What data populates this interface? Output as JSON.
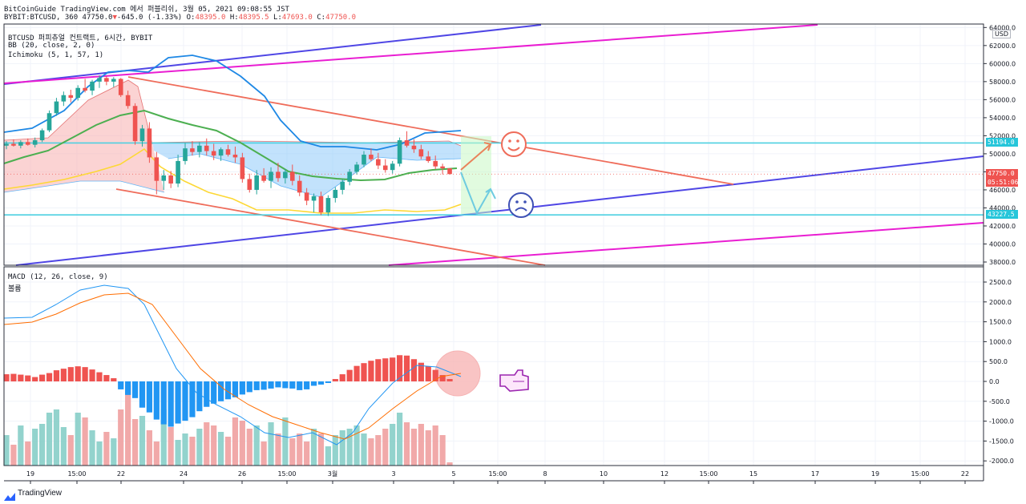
{
  "header": {
    "line1": "BitCoinGuide TradingView.com 에서 퍼블리쉬, 3월 05, 2021 09:08:55 JST",
    "symbol": "BYBIT:BTCUSD, 360",
    "price": "47750.0",
    "arrow": "▼",
    "change": "-645.0 (-1.33%)",
    "o_label": "O:",
    "o_value": "48395.0",
    "h_label": "H:",
    "h_value": "48395.5",
    "l_label": "L:",
    "l_value": "47693.0",
    "c_label": "C:",
    "c_value": "47750.0"
  },
  "main_pane": {
    "title": "BTCUSD 퍼피츄얼 컨트랙트, 6시간, BYBIT",
    "ind1": "BB (20, close, 2, 0)",
    "ind2": "Ichimoku (5, 1, 57, 1)",
    "currency": "USD",
    "price_tags": {
      "resistance": "51194.0",
      "last": "47750.0",
      "countdown": "05:51:06",
      "support": "43227.5"
    }
  },
  "macd_pane": {
    "title": "MACD (12, 26, close, 9)",
    "volume_label": "볼륨"
  },
  "colors": {
    "bull": "#ef5350",
    "bear": "#26a69a",
    "hist_pos": "#ef5350",
    "hist_neg": "#2196f3",
    "vol_bull": "#ef9a9a",
    "vol_bear": "#80cbc4",
    "bb_basis": "#4caf50",
    "bb_band": "#1e88e5",
    "ichimoku_lag": "#fdd835",
    "trend_blue": "#4f46e5",
    "trend_magenta": "#e91ed2",
    "trend_red": "#ef6c5a",
    "hline": "#4dd0e1",
    "macd_line": "#2196f3",
    "signal_line": "#ff6d00"
  },
  "icons": {
    "happy": "smiley-face-icon",
    "sad": "frowny-face-icon",
    "pointer": "pointing-hand-icon",
    "logo": "tradingview-logo-icon"
  },
  "chart_data": [
    {
      "type": "candlestick",
      "title": "BTCUSD 퍼피츄얼 컨트랙트, 6시간, BYBIT",
      "ylabel": "USD",
      "ylim": [
        37000,
        64500
      ],
      "y_ticks": [
        "38000.0",
        "40000.0",
        "42000.0",
        "44000.0",
        "46000.0",
        "48000.0",
        "50000.0",
        "52000.0",
        "54000.0",
        "56000.0",
        "58000.0",
        "60000.0",
        "62000.0",
        "64000.0"
      ],
      "x_ticks": [
        "19",
        "15:00",
        "22",
        "24",
        "26",
        "15:00",
        "3월",
        "3",
        "5",
        "15:00",
        "8",
        "10",
        "12",
        "15:00",
        "15",
        "17",
        "19",
        "15:00",
        "22"
      ],
      "candles_ohlc": [
        [
          50900,
          51400,
          50500,
          51100
        ],
        [
          51100,
          51600,
          50800,
          50900
        ],
        [
          50900,
          51500,
          50600,
          51300
        ],
        [
          51300,
          51700,
          50900,
          51000
        ],
        [
          51000,
          51800,
          50700,
          51500
        ],
        [
          51500,
          52800,
          51300,
          52600
        ],
        [
          52600,
          54800,
          52400,
          54500
        ],
        [
          54500,
          56200,
          54200,
          55800
        ],
        [
          55800,
          56900,
          55300,
          56500
        ],
        [
          56500,
          57100,
          55700,
          56200
        ],
        [
          56200,
          57600,
          55900,
          57300
        ],
        [
          57300,
          58300,
          56800,
          57000
        ],
        [
          57000,
          58200,
          56500,
          58000
        ],
        [
          58000,
          58700,
          57300,
          58400
        ],
        [
          58400,
          58600,
          57600,
          58000
        ],
        [
          58000,
          58500,
          57400,
          58300
        ],
        [
          58300,
          58400,
          56300,
          56500
        ],
        [
          56500,
          57000,
          55000,
          55300
        ],
        [
          55300,
          55600,
          51000,
          51400
        ],
        [
          51400,
          53200,
          50800,
          52800
        ],
        [
          52800,
          53500,
          49000,
          49600
        ],
        [
          49600,
          50200,
          45500,
          47000
        ],
        [
          47000,
          48200,
          46000,
          47600
        ],
        [
          47600,
          48100,
          46200,
          46700
        ],
        [
          46700,
          49900,
          46300,
          49200
        ],
        [
          49200,
          51200,
          48800,
          50600
        ],
        [
          50600,
          51400,
          49800,
          50200
        ],
        [
          50200,
          51300,
          49600,
          50900
        ],
        [
          50900,
          51700,
          49800,
          50300
        ],
        [
          50300,
          51100,
          49300,
          49800
        ],
        [
          49800,
          50700,
          49200,
          50500
        ],
        [
          50500,
          51000,
          49700,
          49900
        ],
        [
          49900,
          50800,
          49000,
          49600
        ],
        [
          49600,
          50100,
          46800,
          47200
        ],
        [
          47200,
          47800,
          45700,
          46000
        ],
        [
          46000,
          48200,
          45500,
          47600
        ],
        [
          47600,
          48400,
          46800,
          47000
        ],
        [
          47000,
          48500,
          46200,
          48000
        ],
        [
          48000,
          49000,
          46900,
          47300
        ],
        [
          47300,
          48300,
          46700,
          48000
        ],
        [
          48000,
          48800,
          46500,
          47000
        ],
        [
          47000,
          47600,
          45300,
          45700
        ],
        [
          45700,
          46200,
          44300,
          44800
        ],
        [
          44800,
          45600,
          43500,
          45300
        ],
        [
          45300,
          45800,
          43200,
          43500
        ],
        [
          43500,
          45400,
          43100,
          45100
        ],
        [
          45100,
          46300,
          44600,
          46000
        ],
        [
          46000,
          47200,
          45500,
          46900
        ],
        [
          46900,
          48300,
          46500,
          48000
        ],
        [
          48000,
          49100,
          47700,
          48800
        ],
        [
          48800,
          50300,
          48500,
          49900
        ],
        [
          49900,
          50600,
          49200,
          49400
        ],
        [
          49400,
          50100,
          48300,
          48700
        ],
        [
          48700,
          49400,
          47900,
          48200
        ],
        [
          48200,
          49200,
          47800,
          48900
        ],
        [
          48900,
          51800,
          48600,
          51500
        ],
        [
          51500,
          52500,
          50700,
          50900
        ],
        [
          50900,
          51600,
          50100,
          50500
        ],
        [
          50500,
          51000,
          49400,
          49700
        ],
        [
          49700,
          50300,
          49000,
          49200
        ],
        [
          49200,
          49800,
          48300,
          48600
        ],
        [
          48600,
          48900,
          47700,
          48395
        ],
        [
          48395,
          48395.5,
          47693,
          47750
        ]
      ],
      "horizontal_lines": [
        51194.0,
        43227.5
      ],
      "last_price": 47750.0
    },
    {
      "type": "bar",
      "title": "MACD (12, 26, close, 9)",
      "ylim": [
        -2150,
        2700
      ],
      "y_ticks": [
        "2500.0",
        "2000.0",
        "1500.0",
        "1000.0",
        "500.0",
        "0.0",
        "-500.0",
        "-1000.0",
        "-1500.0",
        "-2000.0"
      ],
      "series": [
        {
          "name": "histogram",
          "values": [
            180,
            190,
            170,
            150,
            110,
            170,
            210,
            280,
            320,
            360,
            380,
            360,
            300,
            230,
            160,
            80,
            -200,
            -340,
            -420,
            -660,
            -780,
            -960,
            -1080,
            -1140,
            -1060,
            -990,
            -900,
            -750,
            -640,
            -560,
            -500,
            -450,
            -400,
            -330,
            -270,
            -220,
            -210,
            -180,
            -150,
            -170,
            -180,
            -220,
            -200,
            -110,
            -80,
            -40,
            60,
            180,
            290,
            390,
            460,
            520,
            560,
            580,
            600,
            660,
            650,
            560,
            470,
            380,
            290,
            160,
            60
          ]
        }
      ]
    }
  ]
}
